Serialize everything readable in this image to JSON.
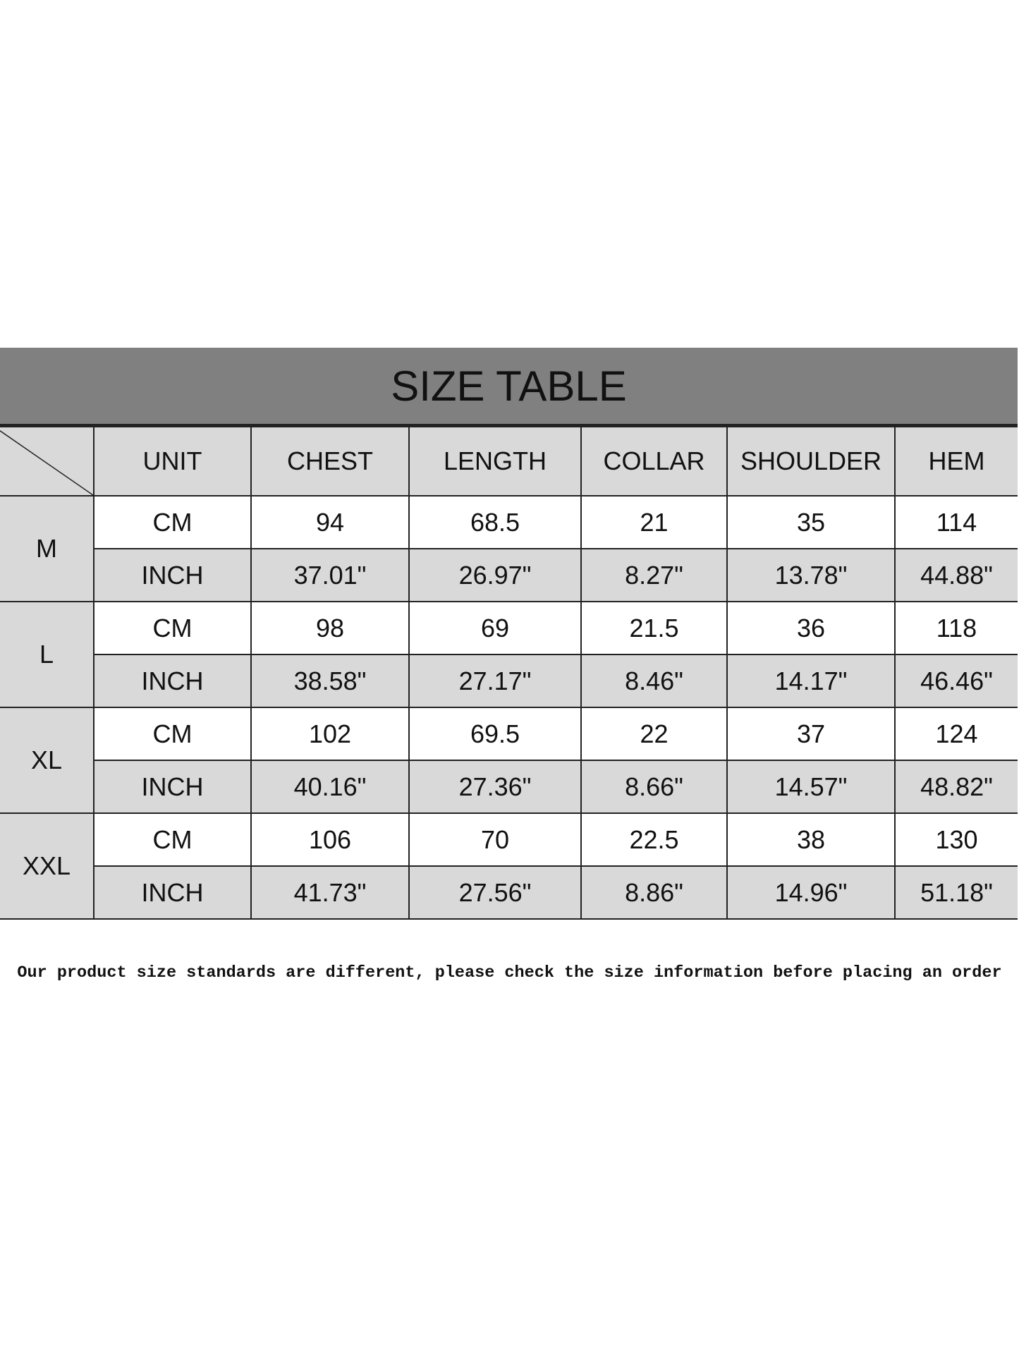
{
  "title": "SIZE TABLE",
  "columns": [
    "UNIT",
    "CHEST",
    "LENGTH",
    "COLLAR",
    "SHOULDER",
    "HEM"
  ],
  "rows": [
    {
      "size": "M",
      "cm": [
        "CM",
        "94",
        "68.5",
        "21",
        "35",
        "114"
      ],
      "inch": [
        "INCH",
        "37.01\"",
        "26.97\"",
        "8.27\"",
        "13.78\"",
        "44.88\""
      ]
    },
    {
      "size": "L",
      "cm": [
        "CM",
        "98",
        "69",
        "21.5",
        "36",
        "118"
      ],
      "inch": [
        "INCH",
        "38.58\"",
        "27.17\"",
        "8.46\"",
        "14.17\"",
        "46.46\""
      ]
    },
    {
      "size": "XL",
      "cm": [
        "CM",
        "102",
        "69.5",
        "22",
        "37",
        "124"
      ],
      "inch": [
        "INCH",
        "40.16\"",
        "27.36\"",
        "8.66\"",
        "14.57\"",
        "48.82\""
      ]
    },
    {
      "size": "XXL",
      "cm": [
        "CM",
        "106",
        "70",
        "22.5",
        "38",
        "130"
      ],
      "inch": [
        "INCH",
        "41.73\"",
        "27.56\"",
        "8.86\"",
        "14.96\"",
        "51.18\""
      ]
    }
  ],
  "note": "Our product size standards are different, please check the size information before placing an order",
  "colors": {
    "title_bg": "#808080",
    "shaded_cell": "#d9d9d9",
    "border": "#222222"
  }
}
